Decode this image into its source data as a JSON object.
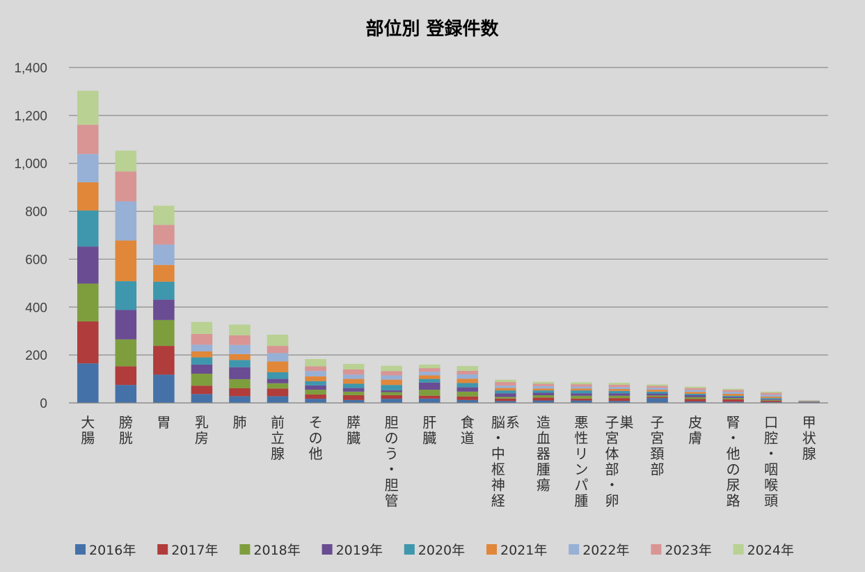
{
  "chart_data": {
    "type": "bar",
    "stacked": true,
    "title": "部位別 登録件数",
    "xlabel": "",
    "ylabel": "",
    "ylim": [
      0,
      1400
    ],
    "yticks": [
      0,
      200,
      400,
      600,
      800,
      1000,
      1200,
      1400
    ],
    "ytick_labels": [
      "0",
      "200",
      "400",
      "600",
      "800",
      "1,000",
      "1,200",
      "1,400"
    ],
    "grid": true,
    "legend_position": "bottom",
    "categories": [
      "大腸",
      "膀胱",
      "胃",
      "乳房",
      "肺",
      "前立腺",
      "その他",
      "膵臓",
      "胆のう・胆管",
      "肝臓",
      "食道",
      "脳・中枢神経系",
      "造血器腫瘍",
      "悪性リンパ腫",
      "子宮体部・卵巣",
      "子宮頚部",
      "皮膚",
      "腎・他の尿路",
      "口腔・咽喉頭",
      "甲状腺"
    ],
    "series": [
      {
        "name": "2016年",
        "color": "#4472a8",
        "values": [
          165,
          75,
          118,
          37,
          28,
          28,
          17,
          12,
          17,
          18,
          12,
          8,
          10,
          10,
          8,
          20,
          6,
          5,
          4,
          3
        ]
      },
      {
        "name": "2017年",
        "color": "#b03c3b",
        "values": [
          175,
          78,
          120,
          35,
          33,
          32,
          18,
          20,
          15,
          12,
          15,
          10,
          12,
          8,
          12,
          5,
          10,
          10,
          5,
          1
        ]
      },
      {
        "name": "2018年",
        "color": "#7e9e3e",
        "values": [
          158,
          112,
          108,
          50,
          38,
          22,
          20,
          15,
          13,
          25,
          20,
          7,
          10,
          12,
          10,
          6,
          8,
          5,
          3,
          1
        ]
      },
      {
        "name": "2019年",
        "color": "#6a4c93",
        "values": [
          155,
          123,
          85,
          38,
          50,
          18,
          18,
          15,
          8,
          30,
          18,
          15,
          10,
          10,
          10,
          8,
          8,
          5,
          3,
          1
        ]
      },
      {
        "name": "2020年",
        "color": "#3e97ad",
        "values": [
          150,
          120,
          75,
          30,
          30,
          28,
          18,
          18,
          22,
          15,
          18,
          12,
          10,
          12,
          10,
          8,
          6,
          5,
          5,
          1
        ]
      },
      {
        "name": "2021年",
        "color": "#e0873a",
        "values": [
          118,
          170,
          70,
          25,
          25,
          45,
          20,
          20,
          22,
          15,
          18,
          10,
          8,
          8,
          8,
          8,
          8,
          8,
          6,
          1
        ]
      },
      {
        "name": "2022年",
        "color": "#97b0d6",
        "values": [
          118,
          163,
          85,
          28,
          38,
          35,
          22,
          18,
          18,
          15,
          18,
          10,
          10,
          8,
          8,
          8,
          8,
          8,
          8,
          1
        ]
      },
      {
        "name": "2023年",
        "color": "#d89594",
        "values": [
          122,
          125,
          82,
          45,
          40,
          30,
          20,
          22,
          18,
          15,
          15,
          15,
          10,
          10,
          10,
          8,
          8,
          8,
          8,
          1
        ]
      },
      {
        "name": "2024年",
        "color": "#b9d193",
        "values": [
          142,
          87,
          80,
          50,
          45,
          47,
          30,
          23,
          22,
          15,
          20,
          10,
          8,
          8,
          8,
          6,
          6,
          5,
          5,
          1
        ]
      }
    ]
  }
}
